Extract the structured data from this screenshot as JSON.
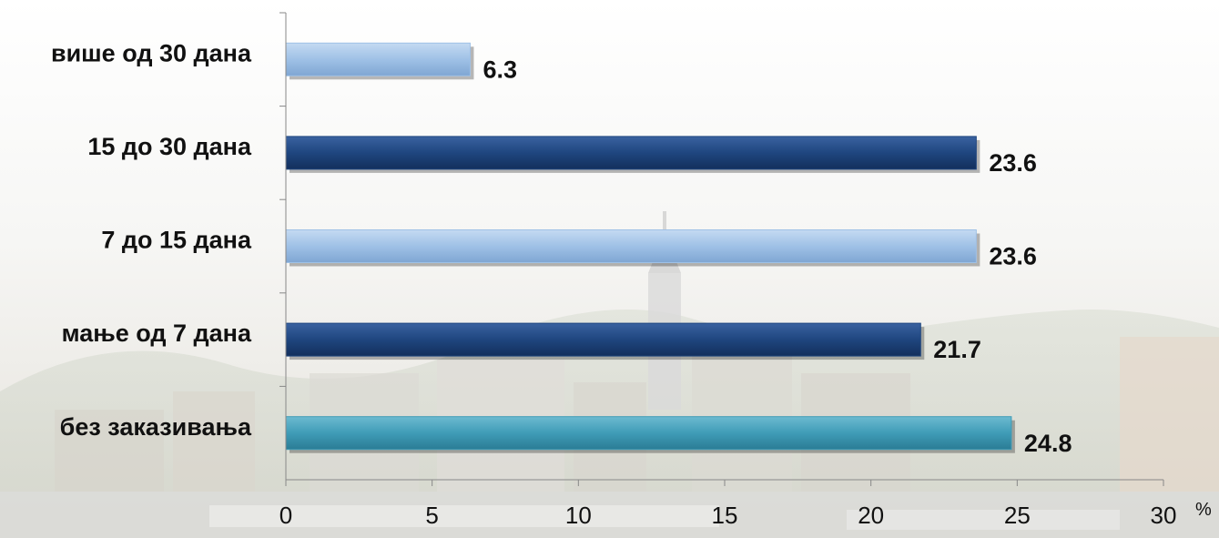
{
  "colors": {
    "light_blue": "#9fc1e6",
    "dark_blue": "#1f467f",
    "teal": "#3f9cb7",
    "axis": "#888888",
    "text": "#111111"
  },
  "chart_data": {
    "type": "bar",
    "orientation": "horizontal",
    "categories": [
      "више од 30 дана",
      "15 до 30 дана",
      "7 до 15 дана",
      "мање од 7 дана",
      "без заказивања"
    ],
    "values": [
      6.3,
      23.6,
      23.6,
      21.7,
      24.8
    ],
    "value_labels": [
      "6.3",
      "23.6",
      "23.6",
      "21.7",
      "24.8"
    ],
    "bar_colors": [
      "light_blue",
      "dark_blue",
      "light_blue",
      "dark_blue",
      "teal"
    ],
    "xlim": [
      0,
      30
    ],
    "xticks": [
      0,
      5,
      10,
      15,
      20,
      25,
      30
    ],
    "xtick_labels": [
      "0",
      "5",
      "10",
      "15",
      "20",
      "25",
      "30"
    ],
    "x_unit": "%",
    "grid": false,
    "legend": "none",
    "title": "",
    "xlabel": "",
    "ylabel": ""
  }
}
